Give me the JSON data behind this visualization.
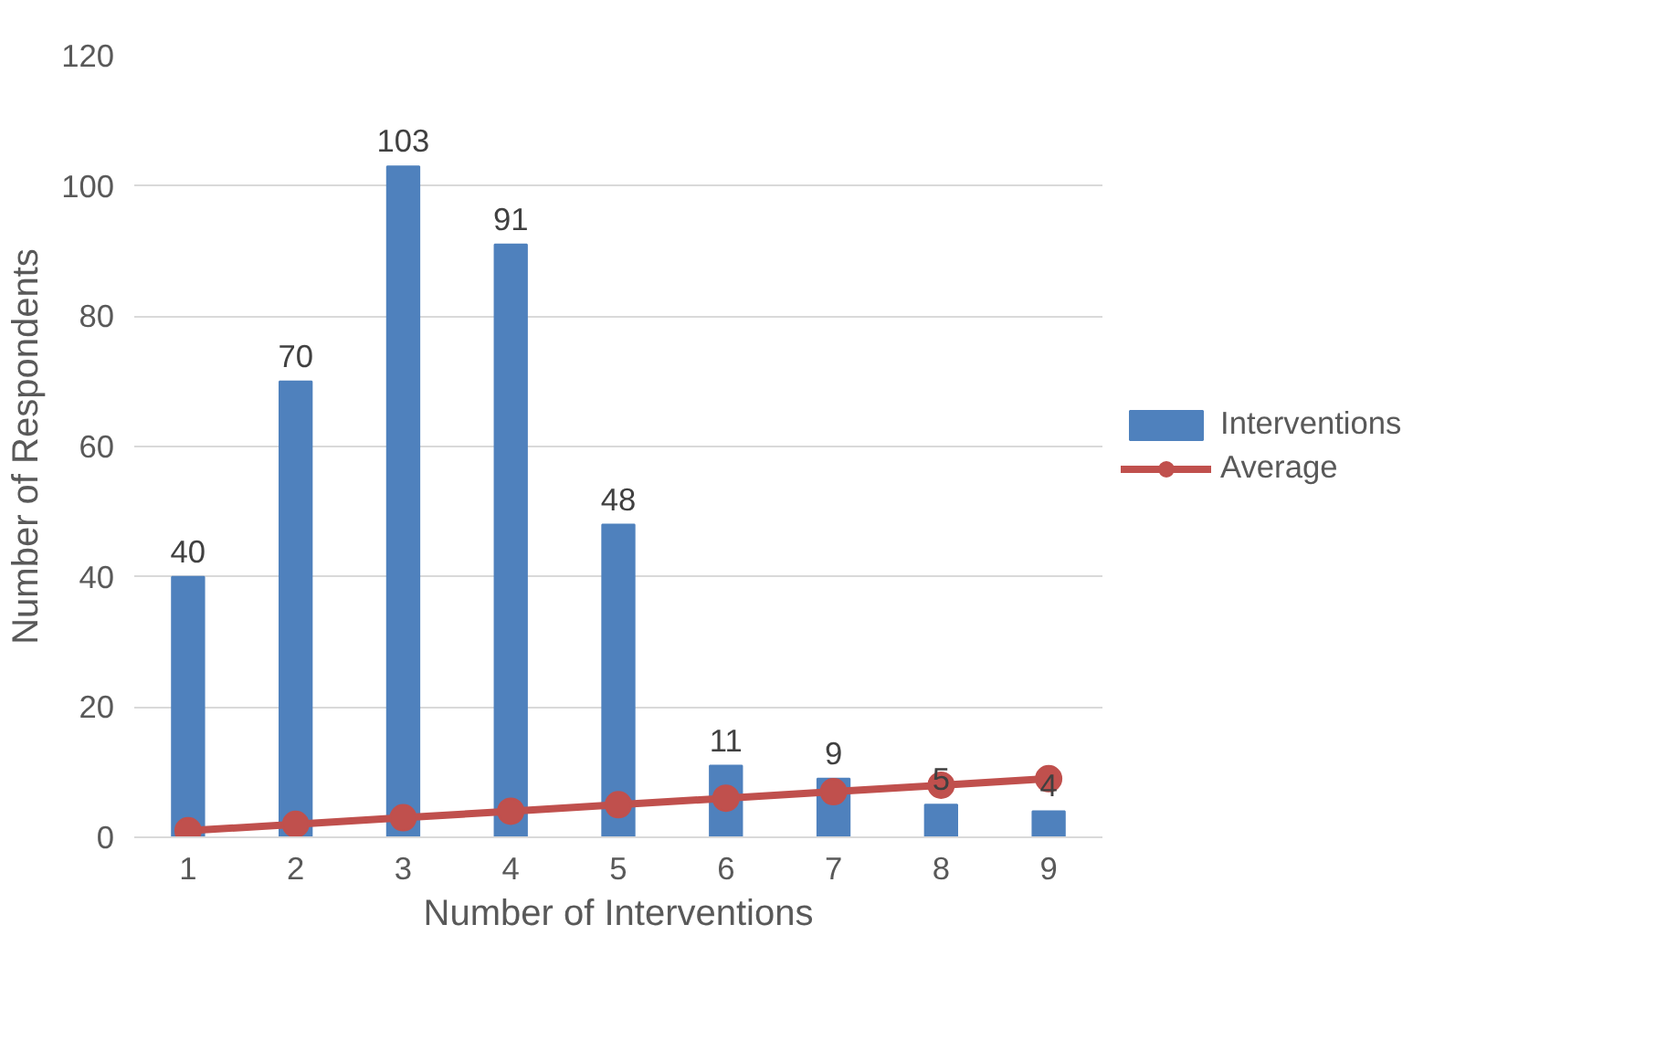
{
  "chart_data": {
    "type": "bar",
    "xlabel": "Number of Interventions",
    "ylabel": "Number of Respondents",
    "categories": [
      "1",
      "2",
      "3",
      "4",
      "5",
      "6",
      "7",
      "8",
      "9"
    ],
    "series": [
      {
        "name": "Interventions",
        "type": "bar",
        "color": "#4f81bd",
        "values": [
          40,
          70,
          103,
          91,
          48,
          11,
          9,
          5,
          4
        ],
        "value_labels": [
          "40",
          "70",
          "103",
          "91",
          "48",
          "11",
          "9",
          "5",
          "4"
        ]
      },
      {
        "name": "Average",
        "type": "line",
        "color": "#c0504d",
        "marker": "circle",
        "values": [
          1,
          2,
          3,
          4,
          5,
          6,
          7,
          8,
          9
        ]
      }
    ],
    "ylim": [
      0,
      120
    ],
    "yticks": [
      0,
      20,
      40,
      60,
      80,
      100,
      120
    ],
    "grid": "y",
    "legend": "right"
  }
}
